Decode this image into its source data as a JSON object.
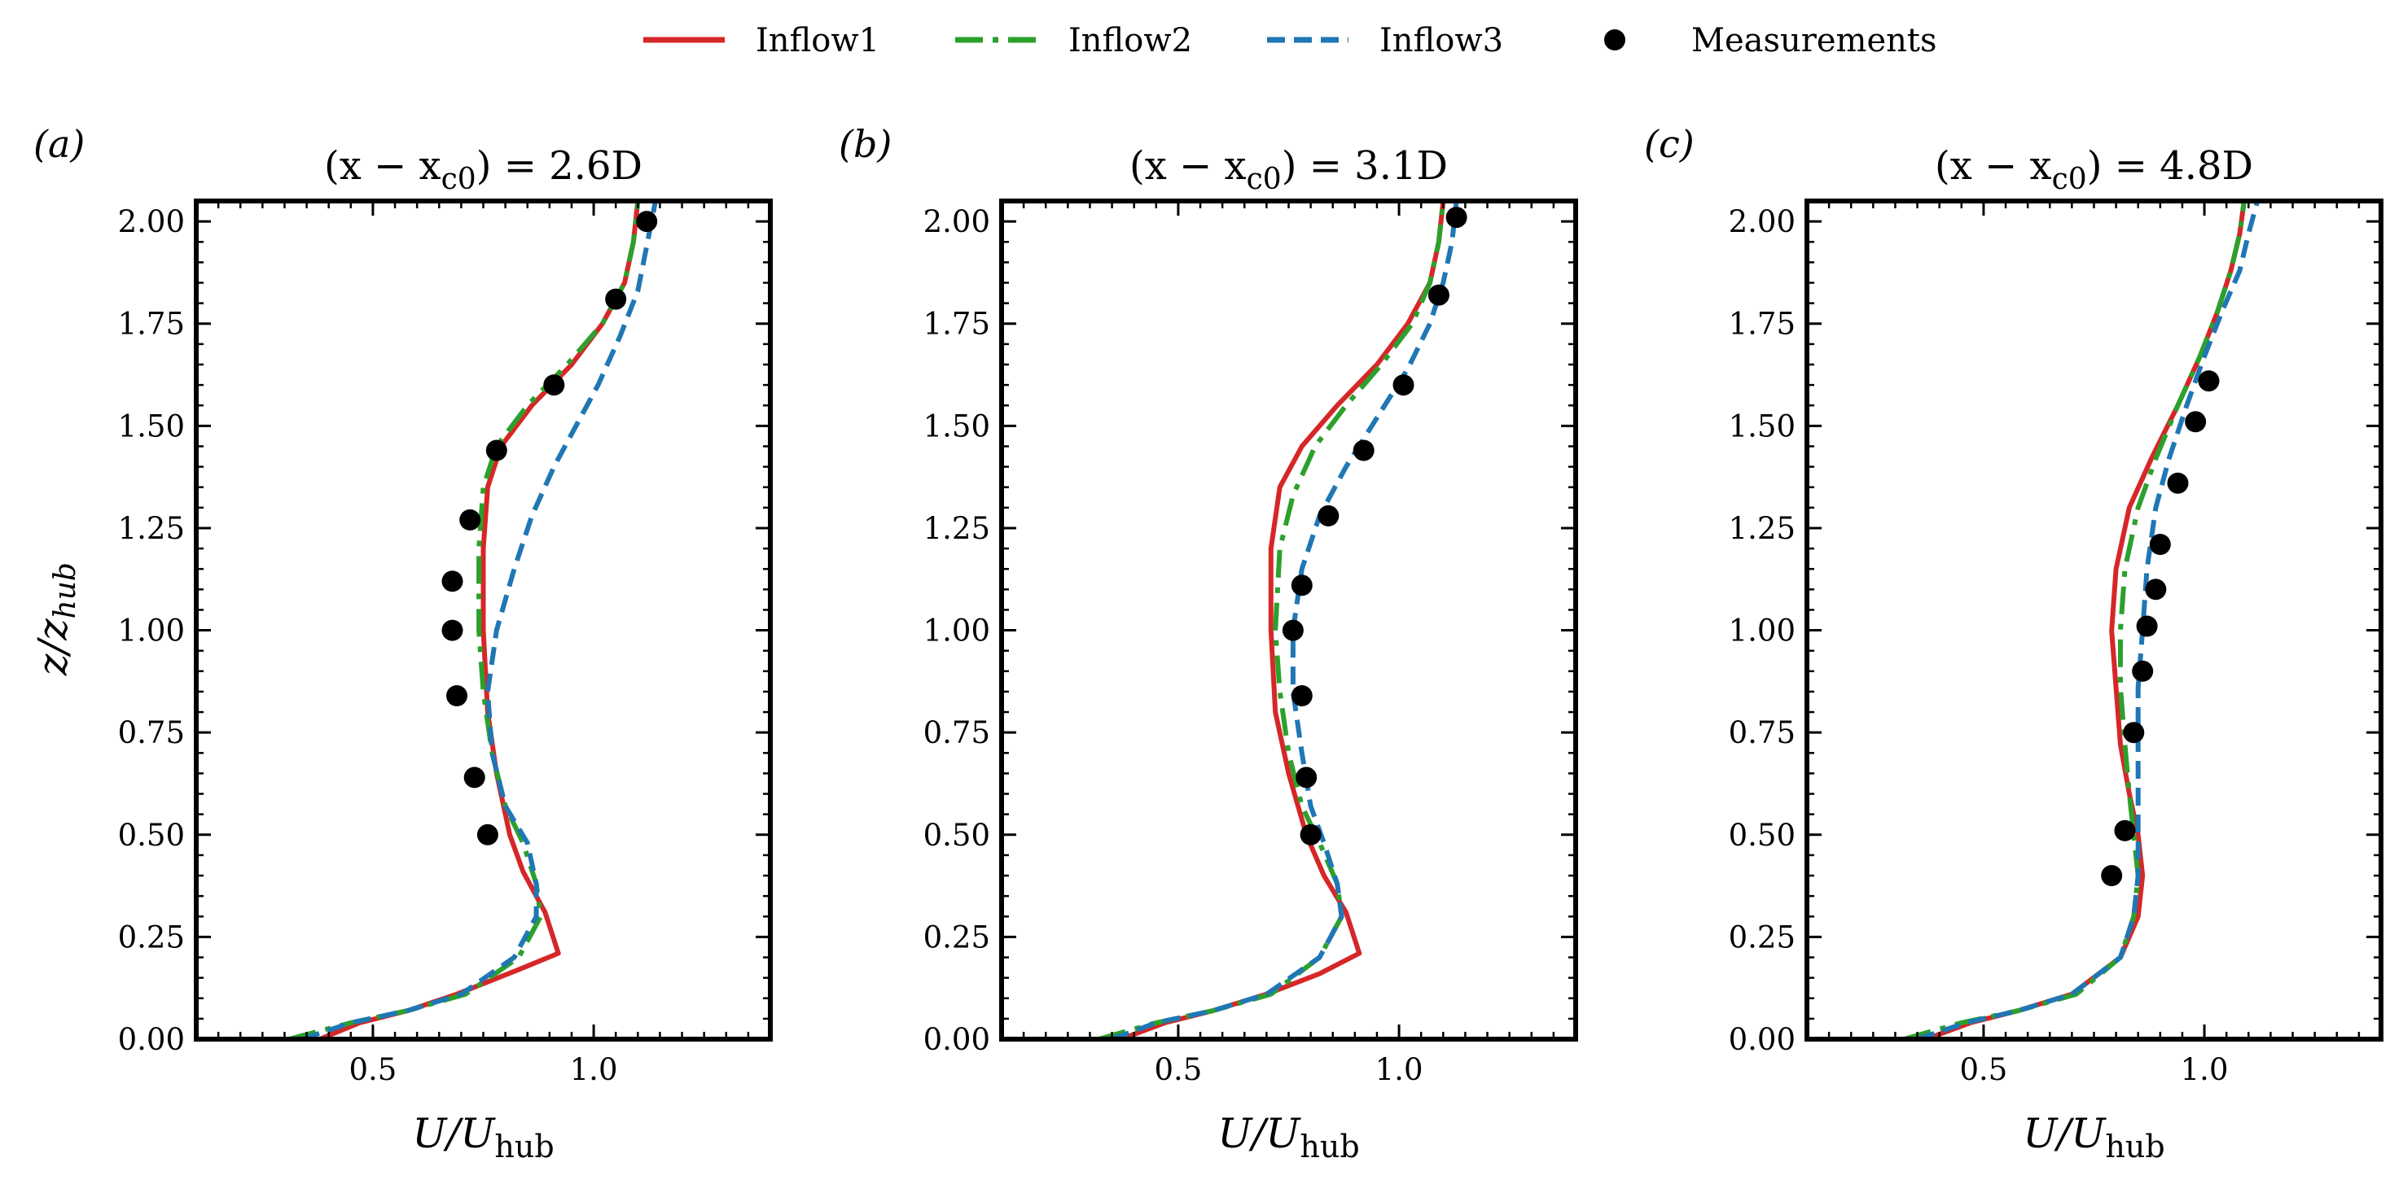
{
  "legend": {
    "placement": "top-center",
    "entries": [
      {
        "label": "Inflow1",
        "style": "solid",
        "color": "#d62728"
      },
      {
        "label": "Inflow2",
        "style": "dashdot",
        "color": "#2ca02c"
      },
      {
        "label": "Inflow3",
        "style": "dashed",
        "color": "#1f77b4"
      },
      {
        "label": "Measurements",
        "style": "marker",
        "color": "#000000"
      }
    ]
  },
  "shared_axes": {
    "xlabel": "U/U",
    "xlabel_sub": "hub",
    "ylabel": "z/z",
    "ylabel_sub": "hub",
    "xlim": [
      0.1,
      1.4
    ],
    "ylim": [
      0.0,
      2.05
    ],
    "xticks": [
      0.5,
      1.0
    ],
    "xtick_labels": [
      "0.5",
      "1.0"
    ],
    "yticks": [
      0.0,
      0.25,
      0.5,
      0.75,
      1.0,
      1.25,
      1.5,
      1.75,
      2.0
    ],
    "ytick_labels": [
      "0.00",
      "0.25",
      "0.50",
      "0.75",
      "1.00",
      "1.25",
      "1.50",
      "1.75",
      "2.00"
    ]
  },
  "chart_data": [
    {
      "type": "line",
      "panel_label": "(a)",
      "title": "(x − x",
      "title_sub": "c0",
      "title_value": ") = 2.6D",
      "series": [
        {
          "name": "Inflow1",
          "x": [
            0.38,
            0.47,
            0.58,
            0.69,
            0.83,
            0.92,
            0.89,
            0.84,
            0.81,
            0.78,
            0.76,
            0.75,
            0.75,
            0.76,
            0.79,
            0.86,
            0.95,
            1.02,
            1.07,
            1.09,
            1.1
          ],
          "y": [
            0.0,
            0.04,
            0.07,
            0.11,
            0.17,
            0.21,
            0.31,
            0.41,
            0.5,
            0.65,
            0.8,
            1.0,
            1.2,
            1.35,
            1.45,
            1.55,
            1.65,
            1.75,
            1.85,
            1.95,
            2.05
          ]
        },
        {
          "name": "Inflow2",
          "x": [
            0.31,
            0.45,
            0.58,
            0.71,
            0.83,
            0.88,
            0.87,
            0.84,
            0.8,
            0.77,
            0.75,
            0.74,
            0.74,
            0.75,
            0.78,
            0.85,
            0.94,
            1.02,
            1.07,
            1.09,
            1.1
          ],
          "y": [
            0.0,
            0.04,
            0.07,
            0.11,
            0.2,
            0.3,
            0.38,
            0.48,
            0.57,
            0.7,
            0.85,
            1.0,
            1.2,
            1.35,
            1.45,
            1.55,
            1.65,
            1.75,
            1.85,
            1.95,
            2.05
          ]
        },
        {
          "name": "Inflow3",
          "x": [
            0.34,
            0.45,
            0.58,
            0.7,
            0.82,
            0.87,
            0.87,
            0.85,
            0.8,
            0.77,
            0.76,
            0.78,
            0.82,
            0.86,
            0.91,
            0.96,
            1.01,
            1.06,
            1.1,
            1.12,
            1.14
          ],
          "y": [
            0.0,
            0.04,
            0.07,
            0.11,
            0.2,
            0.3,
            0.38,
            0.48,
            0.57,
            0.7,
            0.85,
            1.0,
            1.15,
            1.28,
            1.4,
            1.5,
            1.6,
            1.72,
            1.83,
            1.94,
            2.05
          ]
        },
        {
          "name": "Measurements",
          "x": [
            0.76,
            0.73,
            0.69,
            0.68,
            0.68,
            0.72,
            0.78,
            0.91,
            1.05,
            1.12
          ],
          "y": [
            0.5,
            0.64,
            0.84,
            1.0,
            1.12,
            1.27,
            1.44,
            1.6,
            1.81,
            2.0
          ]
        }
      ]
    },
    {
      "type": "line",
      "panel_label": "(b)",
      "title": "(x − x",
      "title_sub": "c0",
      "title_value": ") = 3.1D",
      "series": [
        {
          "name": "Inflow1",
          "x": [
            0.37,
            0.47,
            0.58,
            0.7,
            0.82,
            0.91,
            0.88,
            0.83,
            0.79,
            0.75,
            0.72,
            0.71,
            0.71,
            0.73,
            0.78,
            0.86,
            0.95,
            1.02,
            1.07,
            1.09,
            1.1
          ],
          "y": [
            0.0,
            0.04,
            0.07,
            0.11,
            0.16,
            0.21,
            0.31,
            0.4,
            0.5,
            0.65,
            0.8,
            1.0,
            1.2,
            1.35,
            1.45,
            1.55,
            1.65,
            1.75,
            1.85,
            1.95,
            2.05
          ]
        },
        {
          "name": "Inflow2",
          "x": [
            0.32,
            0.45,
            0.58,
            0.71,
            0.82,
            0.87,
            0.86,
            0.82,
            0.78,
            0.75,
            0.73,
            0.72,
            0.73,
            0.76,
            0.81,
            0.88,
            0.96,
            1.03,
            1.07,
            1.09,
            1.1
          ],
          "y": [
            0.0,
            0.04,
            0.07,
            0.11,
            0.2,
            0.3,
            0.38,
            0.48,
            0.57,
            0.7,
            0.85,
            1.0,
            1.2,
            1.33,
            1.45,
            1.55,
            1.65,
            1.75,
            1.85,
            1.95,
            2.05
          ]
        },
        {
          "name": "Inflow3",
          "x": [
            0.35,
            0.45,
            0.58,
            0.7,
            0.82,
            0.87,
            0.86,
            0.83,
            0.8,
            0.78,
            0.76,
            0.76,
            0.78,
            0.82,
            0.88,
            0.95,
            1.02,
            1.07,
            1.1,
            1.12,
            1.13
          ],
          "y": [
            0.0,
            0.04,
            0.07,
            0.11,
            0.2,
            0.3,
            0.38,
            0.48,
            0.57,
            0.7,
            0.85,
            1.0,
            1.15,
            1.28,
            1.4,
            1.52,
            1.64,
            1.75,
            1.85,
            1.95,
            2.05
          ]
        },
        {
          "name": "Measurements",
          "x": [
            0.8,
            0.79,
            0.78,
            0.76,
            0.78,
            0.84,
            0.92,
            1.01,
            1.09,
            1.13
          ],
          "y": [
            0.5,
            0.64,
            0.84,
            1.0,
            1.11,
            1.28,
            1.44,
            1.6,
            1.82,
            2.01
          ]
        }
      ]
    },
    {
      "type": "line",
      "panel_label": "(c)",
      "title": "(x − x",
      "title_sub": "c0",
      "title_value": ") = 4.8D",
      "series": [
        {
          "name": "Inflow1",
          "x": [
            0.37,
            0.47,
            0.58,
            0.7,
            0.81,
            0.85,
            0.86,
            0.85,
            0.83,
            0.81,
            0.8,
            0.79,
            0.8,
            0.83,
            0.88,
            0.94,
            0.99,
            1.03,
            1.06,
            1.08,
            1.09
          ],
          "y": [
            0.0,
            0.04,
            0.07,
            0.11,
            0.2,
            0.3,
            0.4,
            0.5,
            0.6,
            0.72,
            0.86,
            1.0,
            1.15,
            1.3,
            1.42,
            1.55,
            1.67,
            1.78,
            1.88,
            1.97,
            2.05
          ]
        },
        {
          "name": "Inflow2",
          "x": [
            0.32,
            0.45,
            0.58,
            0.71,
            0.81,
            0.84,
            0.85,
            0.84,
            0.83,
            0.82,
            0.81,
            0.81,
            0.82,
            0.85,
            0.89,
            0.94,
            0.99,
            1.03,
            1.06,
            1.08,
            1.09
          ],
          "y": [
            0.0,
            0.04,
            0.07,
            0.11,
            0.2,
            0.3,
            0.4,
            0.5,
            0.6,
            0.72,
            0.86,
            1.0,
            1.15,
            1.3,
            1.42,
            1.55,
            1.67,
            1.78,
            1.88,
            1.97,
            2.05
          ]
        },
        {
          "name": "Inflow3",
          "x": [
            0.35,
            0.46,
            0.58,
            0.7,
            0.81,
            0.84,
            0.85,
            0.85,
            0.85,
            0.85,
            0.85,
            0.86,
            0.87,
            0.89,
            0.92,
            0.96,
            1.0,
            1.04,
            1.08,
            1.1,
            1.12
          ],
          "y": [
            0.0,
            0.04,
            0.07,
            0.11,
            0.2,
            0.3,
            0.4,
            0.5,
            0.6,
            0.72,
            0.86,
            1.0,
            1.15,
            1.3,
            1.42,
            1.55,
            1.67,
            1.78,
            1.88,
            1.97,
            2.05
          ]
        },
        {
          "name": "Measurements",
          "x": [
            0.79,
            0.82,
            0.84,
            0.86,
            0.87,
            0.89,
            0.9,
            0.94,
            0.98,
            1.01
          ],
          "y": [
            0.4,
            0.51,
            0.75,
            0.9,
            1.01,
            1.1,
            1.21,
            1.36,
            1.51,
            1.61
          ]
        }
      ]
    }
  ]
}
